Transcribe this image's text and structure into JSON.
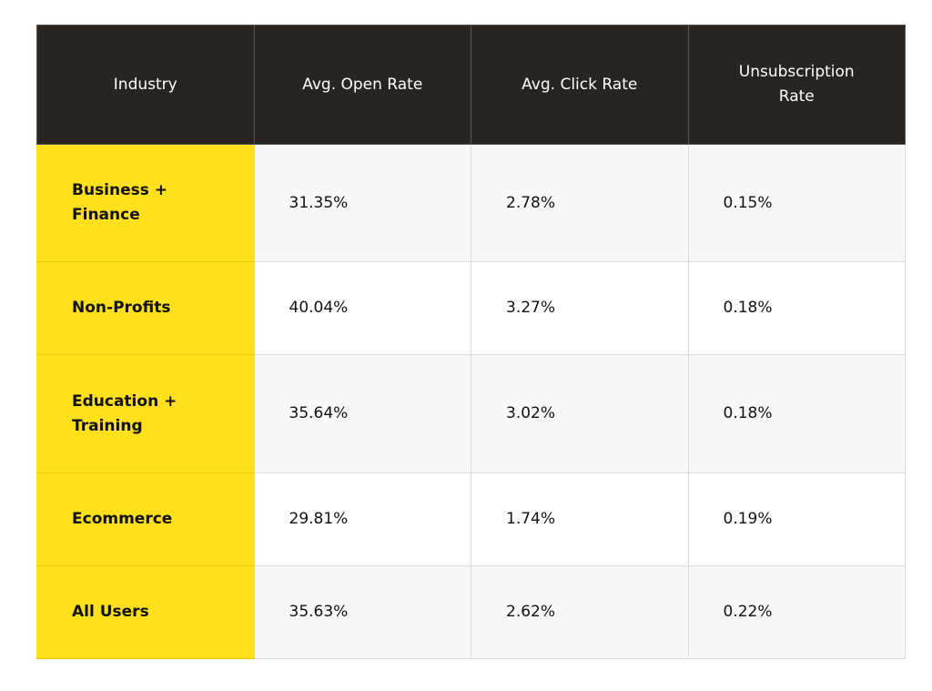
{
  "table": {
    "header": [
      "Industry",
      "Avg. Open Rate",
      "Avg. Click Rate",
      "Unsubscription Rate"
    ],
    "rows": [
      [
        "Business + Finance",
        "31.35%",
        "2.78%",
        "0.15%"
      ],
      [
        "Non-Profits",
        "40.04%",
        "3.27%",
        "0.18%"
      ],
      [
        "Education + Training",
        "35.64%",
        "3.02%",
        "0.18%"
      ],
      [
        "Ecommerce",
        "29.81%",
        "1.74%",
        "0.19%"
      ],
      [
        "All Users",
        "35.63%",
        "2.62%",
        "0.22%"
      ]
    ]
  }
}
